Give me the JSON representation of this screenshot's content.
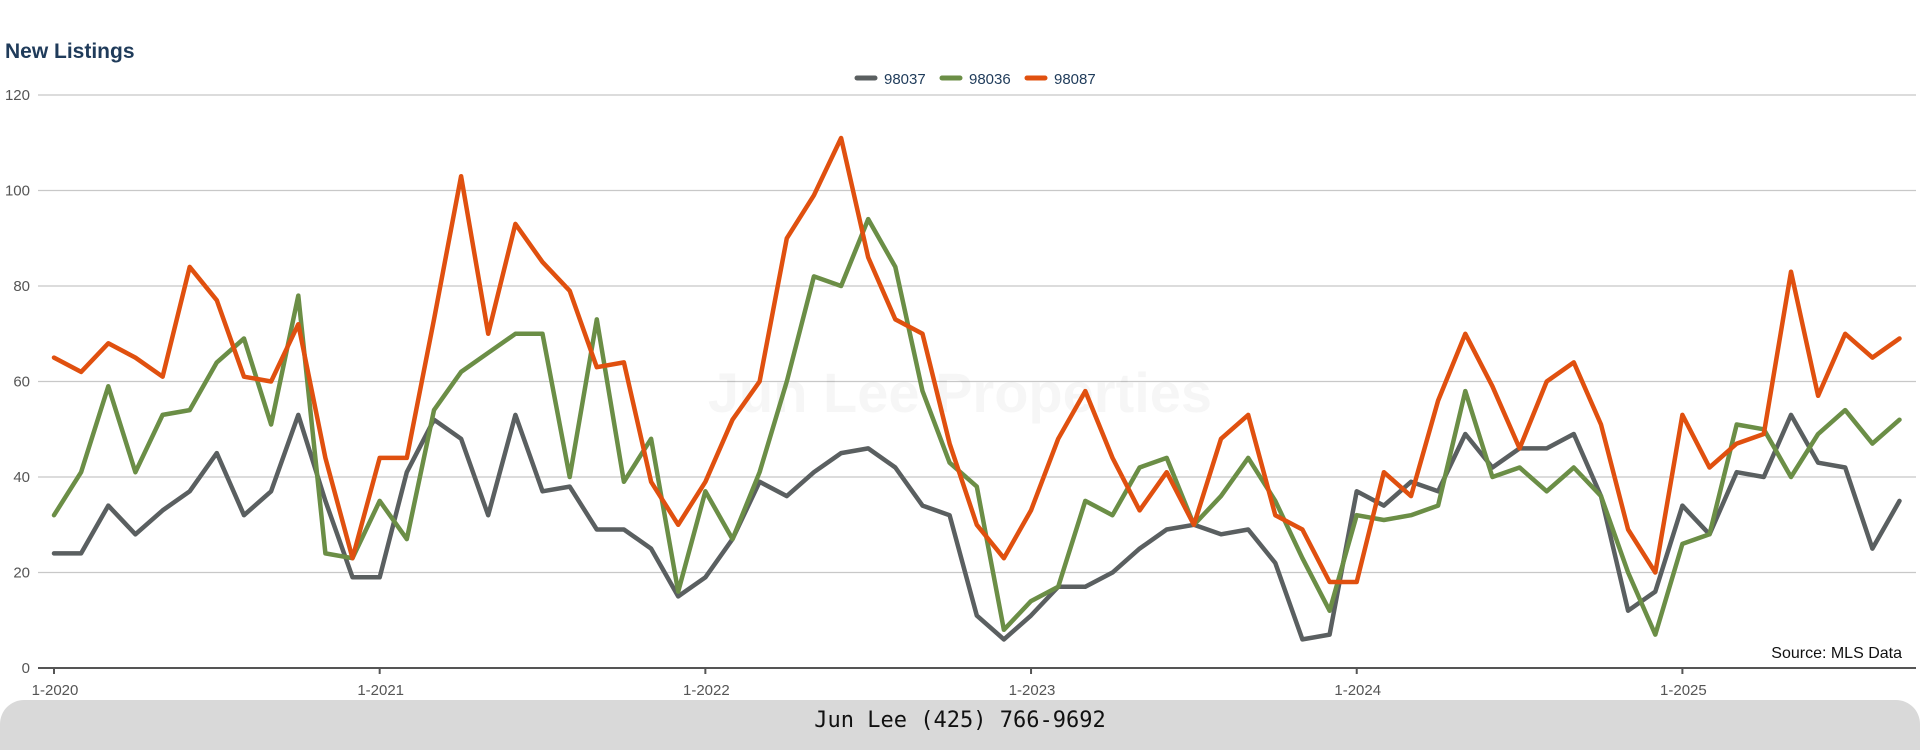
{
  "chart_data": {
    "type": "line",
    "title": "New Listings",
    "ylim": [
      0,
      120
    ],
    "yticks": [
      0,
      20,
      40,
      60,
      80,
      100,
      120
    ],
    "xtick_labels": [
      "1-2020",
      "1-2021",
      "1-2022",
      "1-2023",
      "1-2024",
      "1-2025"
    ],
    "x": [
      "1-2020",
      "2-2020",
      "3-2020",
      "4-2020",
      "5-2020",
      "6-2020",
      "7-2020",
      "8-2020",
      "9-2020",
      "10-2020",
      "11-2020",
      "12-2020",
      "1-2021",
      "2-2021",
      "3-2021",
      "4-2021",
      "5-2021",
      "6-2021",
      "7-2021",
      "8-2021",
      "9-2021",
      "10-2021",
      "11-2021",
      "12-2021",
      "1-2022",
      "2-2022",
      "3-2022",
      "4-2022",
      "5-2022",
      "6-2022",
      "7-2022",
      "8-2022",
      "9-2022",
      "10-2022",
      "11-2022",
      "12-2022",
      "1-2023",
      "2-2023",
      "3-2023",
      "4-2023",
      "5-2023",
      "6-2023",
      "7-2023",
      "8-2023",
      "9-2023",
      "10-2023",
      "11-2023",
      "12-2023",
      "1-2024",
      "2-2024",
      "3-2024",
      "4-2024",
      "5-2024",
      "6-2024",
      "7-2024",
      "8-2024",
      "9-2024",
      "10-2024",
      "11-2024",
      "12-2024",
      "1-2025",
      "2-2025",
      "3-2025",
      "4-2025",
      "5-2025",
      "6-2025",
      "7-2025",
      "8-2025",
      "9-2025"
    ],
    "series": [
      {
        "name": "98037",
        "color": "#5a5f60",
        "values": [
          24,
          24,
          34,
          28,
          33,
          37,
          45,
          32,
          37,
          53,
          35,
          19,
          19,
          41,
          52,
          48,
          32,
          53,
          37,
          38,
          29,
          29,
          25,
          15,
          19,
          27,
          39,
          36,
          41,
          45,
          46,
          42,
          34,
          32,
          11,
          6,
          11,
          17,
          17,
          20,
          25,
          29,
          30,
          28,
          29,
          22,
          6,
          7,
          37,
          34,
          39,
          37,
          49,
          42,
          46,
          46,
          49,
          36,
          12,
          16,
          34,
          28,
          41,
          40,
          53,
          43,
          42,
          25,
          35
        ]
      },
      {
        "name": "98036",
        "color": "#6b8e46",
        "values": [
          32,
          41,
          59,
          41,
          53,
          54,
          64,
          69,
          51,
          78,
          24,
          23,
          35,
          27,
          54,
          62,
          66,
          70,
          70,
          40,
          73,
          39,
          48,
          16,
          37,
          27,
          41,
          60,
          82,
          80,
          94,
          84,
          58,
          43,
          38,
          8,
          14,
          17,
          35,
          32,
          42,
          44,
          30,
          36,
          44,
          35,
          23,
          12,
          32,
          31,
          32,
          34,
          58,
          40,
          42,
          37,
          42,
          36,
          20,
          7,
          26,
          28,
          51,
          50,
          40,
          49,
          54,
          47,
          52
        ]
      },
      {
        "name": "98087",
        "color": "#e0500f",
        "values": [
          65,
          62,
          68,
          65,
          61,
          84,
          77,
          61,
          60,
          72,
          44,
          23,
          44,
          44,
          73,
          103,
          70,
          93,
          85,
          79,
          63,
          64,
          39,
          30,
          39,
          52,
          60,
          90,
          99,
          111,
          86,
          73,
          70,
          47,
          30,
          23,
          33,
          48,
          58,
          44,
          33,
          41,
          30,
          48,
          53,
          32,
          29,
          18,
          18,
          41,
          36,
          56,
          70,
          59,
          46,
          60,
          64,
          51,
          29,
          20,
          53,
          42,
          47,
          49,
          83,
          57,
          70,
          65,
          69
        ]
      }
    ],
    "legend_position": "top-center",
    "grid": true,
    "watermark": "Jun Lee Properties",
    "source_note": "Source: MLS Data"
  },
  "footer": {
    "contact": "Jun Lee (425) 766-9692"
  }
}
